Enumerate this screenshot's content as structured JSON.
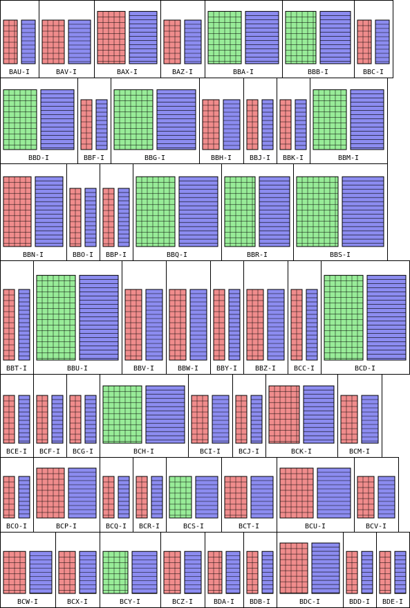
{
  "rows": [
    {
      "cells": [
        {
          "label": "BAU-I",
          "color": "#f08c8c"
        },
        {
          "label": "BAV-I",
          "color": "#f08c8c"
        },
        {
          "label": "BAX-I",
          "color": "#f08c8c"
        },
        {
          "label": "BAZ-I",
          "color": "#f08c8c"
        },
        {
          "label": "BBA-I",
          "color": "#98ec98"
        },
        {
          "label": "BBB-I",
          "color": "#98ec98"
        },
        {
          "label": "BBC-I",
          "color": "#f08c8c"
        }
      ]
    },
    {
      "cells": [
        {
          "label": "BBD-I",
          "color": "#98ec98"
        },
        {
          "label": "BBF-I",
          "color": "#f08c8c"
        },
        {
          "label": "BBG-I",
          "color": "#98ec98"
        },
        {
          "label": "BBH-I",
          "color": "#f08c8c"
        },
        {
          "label": "BBJ-I",
          "color": "#f08c8c"
        },
        {
          "label": "BBK-I",
          "color": "#f08c8c"
        },
        {
          "label": "BBM-I",
          "color": "#98ec98"
        }
      ]
    },
    {
      "cells": [
        {
          "label": "BBN-I",
          "color": "#f08c8c"
        },
        {
          "label": "BBO-I",
          "color": "#f08c8c"
        },
        {
          "label": "BBP-I",
          "color": "#f08c8c"
        },
        {
          "label": "BBQ-I",
          "color": "#98ec98"
        },
        {
          "label": "BBR-I",
          "color": "#98ec98"
        },
        {
          "label": "BBS-I",
          "color": "#98ec98"
        }
      ]
    },
    {
      "cells": [
        {
          "label": "BBT-I",
          "color": "#f08c8c"
        },
        {
          "label": "BBU-I",
          "color": "#98ec98"
        },
        {
          "label": "BBV-I",
          "color": "#f08c8c"
        },
        {
          "label": "BBW-I",
          "color": "#f08c8c"
        },
        {
          "label": "BBY-I",
          "color": "#f08c8c"
        },
        {
          "label": "BBZ-I",
          "color": "#f08c8c"
        },
        {
          "label": "BCC-I",
          "color": "#f08c8c"
        },
        {
          "label": "BCD-I",
          "color": "#98ec98"
        }
      ]
    },
    {
      "cells": [
        {
          "label": "BCE-I",
          "color": "#f08c8c"
        },
        {
          "label": "BCF-I",
          "color": "#f08c8c"
        },
        {
          "label": "BCG-I",
          "color": "#f08c8c"
        },
        {
          "label": "BCH-I",
          "color": "#98ec98"
        },
        {
          "label": "BCI-I",
          "color": "#f08c8c"
        },
        {
          "label": "BCJ-I",
          "color": "#f08c8c"
        },
        {
          "label": "BCK-I",
          "color": "#f08c8c"
        },
        {
          "label": "BCM-I",
          "color": "#f08c8c"
        }
      ]
    },
    {
      "cells": [
        {
          "label": "BCO-I",
          "color": "#f08c8c"
        },
        {
          "label": "BCP-I",
          "color": "#f08c8c"
        },
        {
          "label": "BCQ-I",
          "color": "#f08c8c"
        },
        {
          "label": "BCR-I",
          "color": "#f08c8c"
        },
        {
          "label": "BCS-I",
          "color": "#98ec98"
        },
        {
          "label": "BCT-I",
          "color": "#f08c8c"
        },
        {
          "label": "BCU-I",
          "color": "#f08c8c"
        },
        {
          "label": "BCV-I",
          "color": "#f08c8c"
        }
      ]
    },
    {
      "cells": [
        {
          "label": "BCW-I",
          "color": "#f08c8c"
        },
        {
          "label": "BCX-I",
          "color": "#f08c8c"
        },
        {
          "label": "BCY-I",
          "color": "#98ec98"
        },
        {
          "label": "BCZ-I",
          "color": "#f08c8c"
        },
        {
          "label": "BDA-I",
          "color": "#f08c8c"
        },
        {
          "label": "BDB-I",
          "color": "#f08c8c"
        },
        {
          "label": "BDC-I",
          "color": "#f08c8c"
        },
        {
          "label": "BDD-I",
          "color": "#f08c8c"
        },
        {
          "label": "BDE-I",
          "color": "#f08c8c"
        }
      ]
    }
  ]
}
